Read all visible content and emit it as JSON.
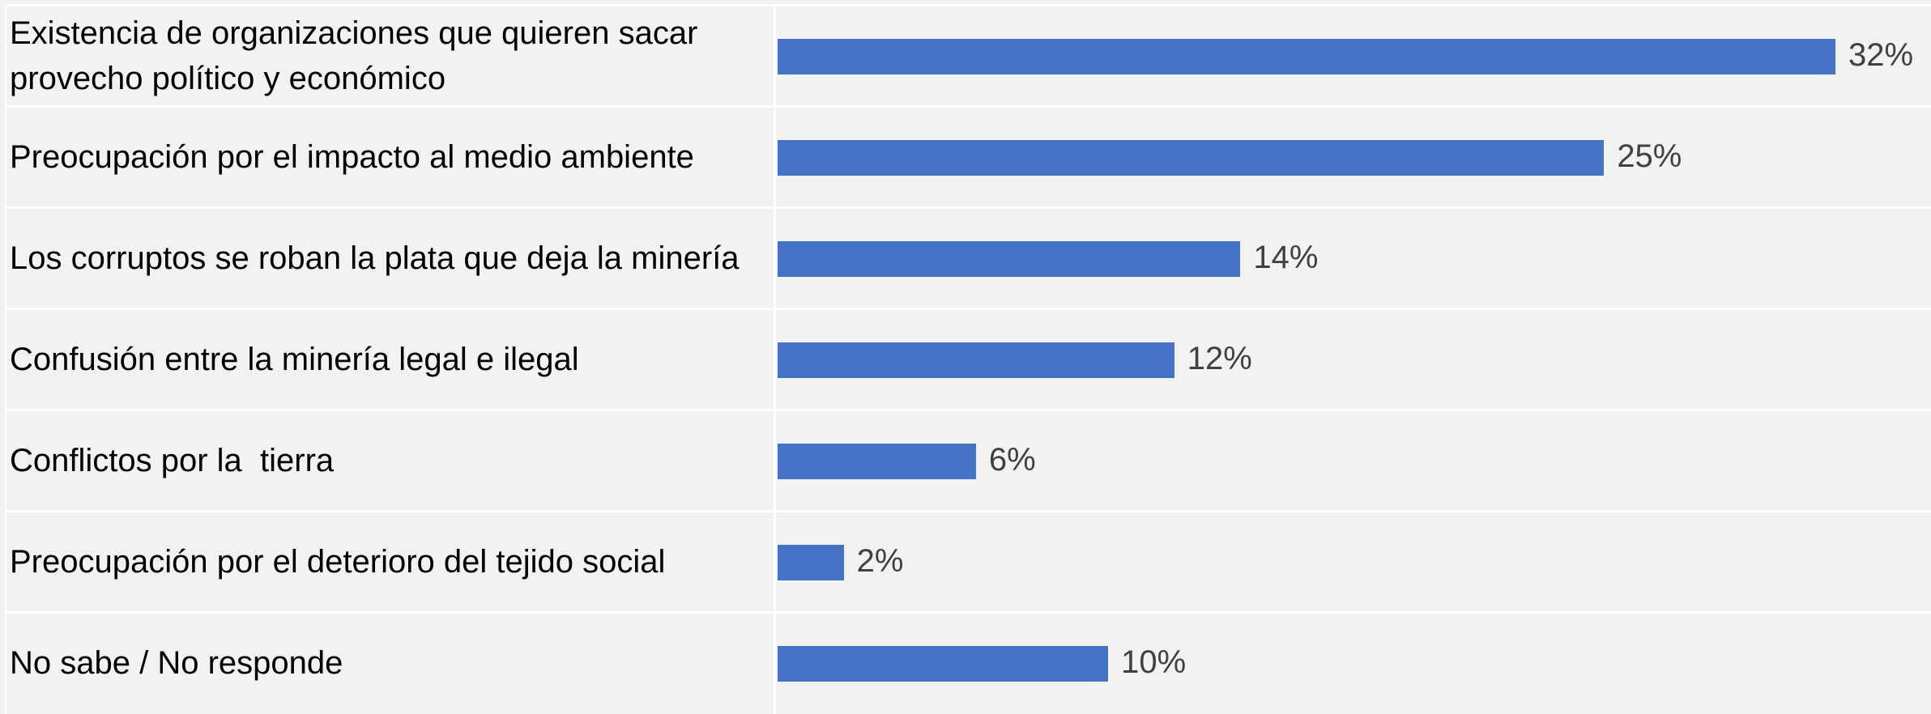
{
  "chart_data": {
    "type": "bar",
    "orientation": "horizontal",
    "categories": [
      "Existencia de organizaciones que quieren sacar provecho político y económico",
      "Preocupación por el impacto al medio ambiente",
      "Los corruptos se roban la plata que deja la minería",
      "Confusión entre la minería legal e ilegal",
      "Conflictos por la  tierra",
      "Preocupación por el deterioro del tejido social",
      "No sabe / No responde"
    ],
    "values": [
      32,
      25,
      14,
      12,
      6,
      2,
      10
    ],
    "value_labels": [
      "32%",
      "25%",
      "14%",
      "12%",
      "6%",
      "2%",
      "10%"
    ],
    "color": "#4472c4"
  }
}
